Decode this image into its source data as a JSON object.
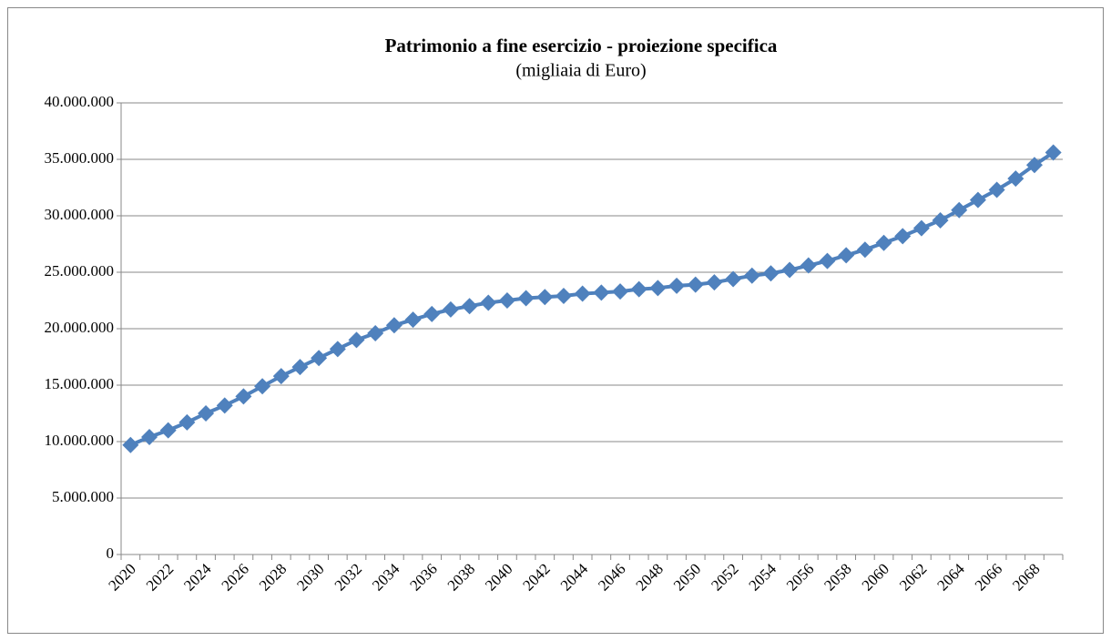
{
  "chart_data": {
    "type": "line",
    "title": "Patrimonio a fine esercizio - proiezione specifica",
    "subtitle": "(migliaia di Euro)",
    "categories": [
      "2020",
      null,
      "2022",
      null,
      "2024",
      null,
      "2026",
      null,
      "2028",
      null,
      "2030",
      null,
      "2032",
      null,
      "2034",
      null,
      "2036",
      null,
      "2038",
      null,
      "2040",
      null,
      "2042",
      null,
      "2044",
      null,
      "2046",
      null,
      "2048",
      null,
      "2050",
      null,
      "2052",
      null,
      "2054",
      null,
      "2056",
      null,
      "2058",
      null,
      "2060",
      null,
      "2062",
      null,
      "2064",
      null,
      "2066",
      null,
      "2068",
      null
    ],
    "values": [
      9700000,
      10400000,
      11000000,
      11700000,
      12500000,
      13200000,
      14000000,
      14900000,
      15800000,
      16600000,
      17400000,
      18200000,
      19000000,
      19600000,
      20300000,
      20800000,
      21300000,
      21700000,
      22000000,
      22300000,
      22500000,
      22700000,
      22800000,
      22900000,
      23100000,
      23200000,
      23300000,
      23500000,
      23600000,
      23800000,
      23900000,
      24100000,
      24400000,
      24700000,
      24900000,
      25200000,
      25600000,
      26000000,
      26500000,
      27000000,
      27600000,
      28200000,
      28900000,
      29600000,
      30500000,
      31400000,
      32300000,
      33300000,
      34500000,
      35600000
    ],
    "color": "#4f81bd",
    "ylim": [
      0,
      40000000
    ],
    "yticks": [
      0,
      {
        "value": 5000000,
        "label": "5.000.000"
      },
      {
        "value": 10000000,
        "label": "10.000.000"
      },
      {
        "value": 15000000,
        "label": "15.000.000"
      },
      {
        "value": 20000000,
        "label": "20.000.000"
      },
      {
        "value": 25000000,
        "label": "25.000.000"
      },
      {
        "value": 30000000,
        "label": "30.000.000"
      },
      {
        "value": 35000000,
        "label": "35.000.000"
      },
      {
        "value": 40000000,
        "label": "40.000.000"
      }
    ],
    "grid": true
  }
}
